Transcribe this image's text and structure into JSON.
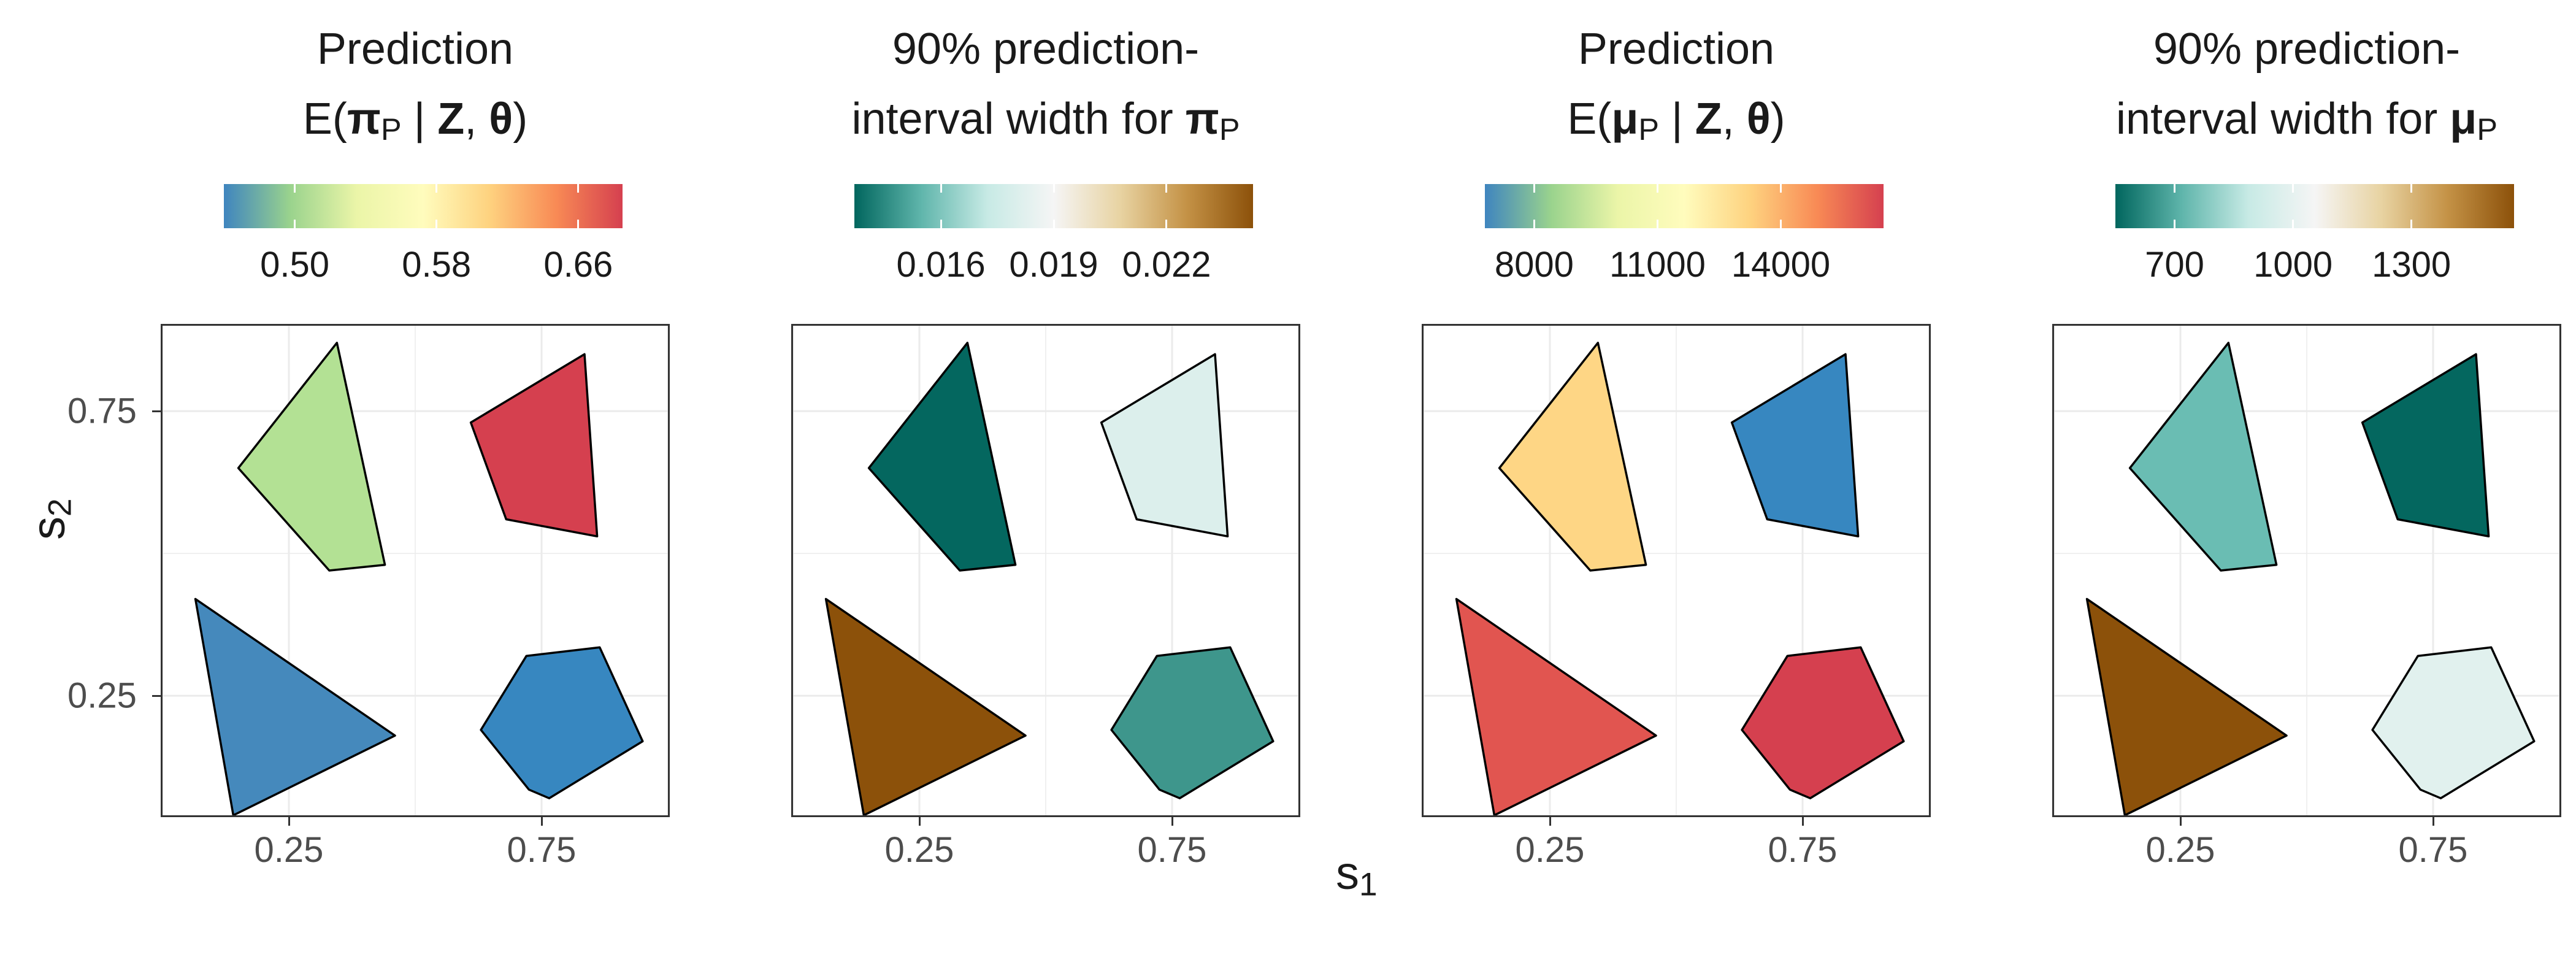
{
  "figure": {
    "xlabel": "s",
    "xlabel_sub": "1",
    "ylabel": "s",
    "ylabel_sub": "2"
  },
  "colors": {
    "spectral": [
      "#3f85bf",
      "#9ad38d",
      "#ebf5a8",
      "#fffcbd",
      "#fed27f",
      "#f88a55",
      "#d5404f"
    ],
    "brbg": [
      "#01665e",
      "#5fb5ab",
      "#c7eae5",
      "#f5f5f5",
      "#e8d3a2",
      "#c49246",
      "#8c510a"
    ]
  },
  "chart_data": [
    {
      "type": "choropleth",
      "title_line1": "Prediction",
      "title_line2": {
        "pre": "E(",
        "bold1": "π",
        "sub1": "P",
        "mid": " | ",
        "bold2": "Z",
        "sep": ", ",
        "bold3": "θ",
        "post": ")"
      },
      "colorbar": {
        "palette": "spectral",
        "range": [
          0.46,
          0.685
        ],
        "ticks": [
          0.5,
          0.58,
          0.66
        ],
        "tick_labels": [
          "0.50",
          "0.58",
          "0.66"
        ]
      },
      "xlim": [
        0.0,
        1.0
      ],
      "ylim": [
        0.04,
        0.9
      ],
      "x_ticks": [
        0.25,
        0.75
      ],
      "y_ticks": [
        0.25,
        0.75
      ],
      "regions": [
        {
          "name": "upper-left",
          "value": 0.545,
          "fill": "#b3e194"
        },
        {
          "name": "upper-right",
          "value": 0.685,
          "fill": "#d5404f"
        },
        {
          "name": "lower-left",
          "value": 0.465,
          "fill": "#4589bc"
        },
        {
          "name": "lower-right",
          "value": 0.455,
          "fill": "#3787c0"
        }
      ]
    },
    {
      "type": "choropleth",
      "title_line1": "90% prediction-",
      "title_line2": {
        "pre": "interval width for ",
        "bold1": "π",
        "sub1": "P",
        "mid": "",
        "bold2": "",
        "sep": "",
        "bold3": "",
        "post": ""
      },
      "colorbar": {
        "palette": "brbg",
        "range": [
          0.0137,
          0.0243
        ],
        "ticks": [
          0.016,
          0.019,
          0.022
        ],
        "tick_labels": [
          "0.016",
          "0.019",
          "0.022"
        ]
      },
      "xlim": [
        0.0,
        1.0
      ],
      "ylim": [
        0.04,
        0.9
      ],
      "x_ticks": [
        0.25,
        0.75
      ],
      "y_ticks": [
        0.25,
        0.75
      ],
      "regions": [
        {
          "name": "upper-left",
          "value": 0.0138,
          "fill": "#04675f"
        },
        {
          "name": "upper-right",
          "value": 0.0175,
          "fill": "#dcefec"
        },
        {
          "name": "lower-left",
          "value": 0.0243,
          "fill": "#8c510a"
        },
        {
          "name": "lower-right",
          "value": 0.0148,
          "fill": "#3e968c"
        }
      ]
    },
    {
      "type": "choropleth",
      "title_line1": "Prediction",
      "title_line2": {
        "pre": "E(",
        "bold1": "μ",
        "sub1": "P",
        "mid": " | ",
        "bold2": "Z",
        "sep": ", ",
        "bold3": "θ",
        "post": ")"
      },
      "colorbar": {
        "palette": "spectral",
        "range": [
          6800,
          16500
        ],
        "ticks": [
          8000,
          11000,
          14000
        ],
        "tick_labels": [
          "8000",
          "11000",
          "14000"
        ]
      },
      "xlim": [
        0.0,
        1.0
      ],
      "ylim": [
        0.04,
        0.9
      ],
      "x_ticks": [
        0.25,
        0.75
      ],
      "y_ticks": [
        0.25,
        0.75
      ],
      "regions": [
        {
          "name": "upper-left",
          "value": 13000,
          "fill": "#fed685"
        },
        {
          "name": "upper-right",
          "value": 7000,
          "fill": "#3787c0"
        },
        {
          "name": "lower-left",
          "value": 15900,
          "fill": "#e15550"
        },
        {
          "name": "lower-right",
          "value": 16400,
          "fill": "#d5404f"
        }
      ]
    },
    {
      "type": "choropleth",
      "title_line1": "90% prediction-",
      "title_line2": {
        "pre": "interval width for ",
        "bold1": "μ",
        "sub1": "P",
        "mid": "",
        "bold2": "",
        "sep": "",
        "bold3": "",
        "post": ""
      },
      "colorbar": {
        "palette": "brbg",
        "range": [
          550,
          1560
        ],
        "ticks": [
          700,
          1000,
          1300
        ],
        "tick_labels": [
          "700",
          "1000",
          "1300"
        ]
      },
      "xlim": [
        0.0,
        1.0
      ],
      "ylim": [
        0.04,
        0.9
      ],
      "x_ticks": [
        0.25,
        0.75
      ],
      "y_ticks": [
        0.25,
        0.75
      ],
      "regions": [
        {
          "name": "upper-left",
          "value": 790,
          "fill": "#6abdb3"
        },
        {
          "name": "upper-right",
          "value": 560,
          "fill": "#04675f"
        },
        {
          "name": "lower-left",
          "value": 1560,
          "fill": "#8c510a"
        },
        {
          "name": "lower-right",
          "value": 960,
          "fill": "#e1f1ee"
        }
      ]
    }
  ]
}
